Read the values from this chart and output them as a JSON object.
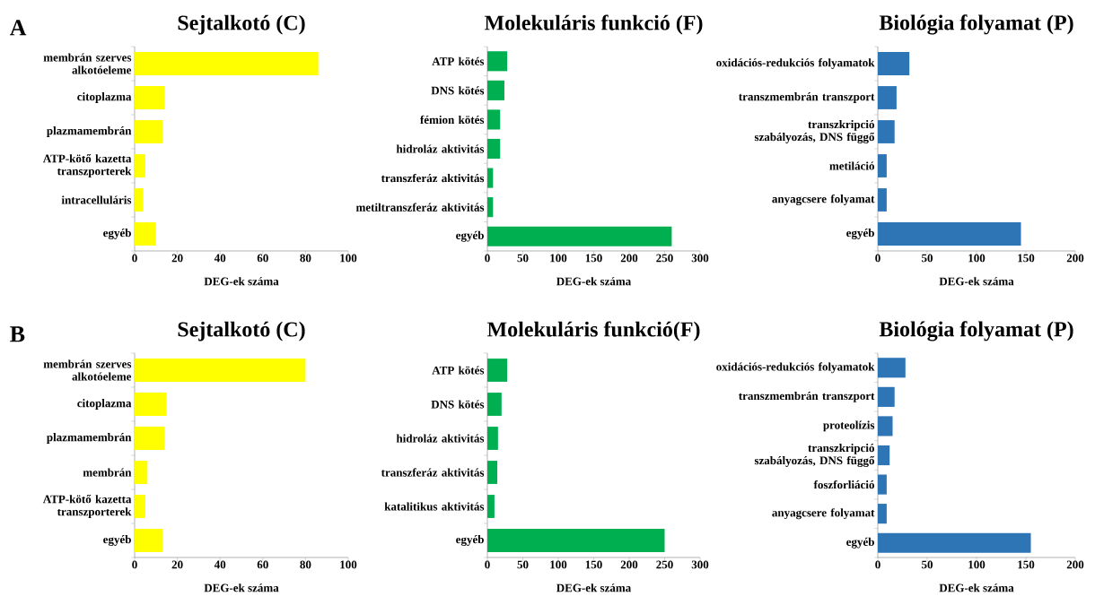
{
  "chart_data": [
    {
      "type": "bar",
      "orientation": "horizontal",
      "title": "Sejtalkotó (C)",
      "xlabel": "DEG-ek száma",
      "annotations": [
        "A"
      ],
      "categories": [
        "membrán szerves alkotóeleme",
        "citoplazma",
        "plazmamembrán",
        "ATP-kötő kazetta transzporterek",
        "intracelluláris",
        "egyéb"
      ],
      "values": [
        86,
        14,
        13,
        5,
        4,
        10
      ],
      "color": "#ffff00",
      "xlim": [
        0,
        100
      ],
      "xticks": [
        0,
        20,
        40,
        60,
        80,
        100
      ]
    },
    {
      "type": "bar",
      "orientation": "horizontal",
      "title": "Molekuláris funkció (F)",
      "xlabel": "DEG-ek száma",
      "categories": [
        "ATP kötés",
        "DNS kötés",
        "fémion kötés",
        "hidroláz aktivitás",
        "transzferáz aktivitás",
        "metiltranszferáz aktivitás",
        "egyéb"
      ],
      "values": [
        28,
        24,
        18,
        18,
        8,
        8,
        260
      ],
      "color": "#00b050",
      "xlim": [
        0,
        300
      ],
      "xticks": [
        0,
        50,
        100,
        150,
        200,
        250,
        300
      ]
    },
    {
      "type": "bar",
      "orientation": "horizontal",
      "title": "Biológia folyamat (P)",
      "xlabel": "DEG-ek száma",
      "categories": [
        "oxidációs-redukciós folyamatok",
        "transzmembrán transzport",
        "transzkripció szabályozás, DNS függő",
        "metiláció",
        "anyagcsere folyamat",
        "egyéb"
      ],
      "values": [
        32,
        19,
        17,
        9,
        9,
        145
      ],
      "color": "#2e75b6",
      "xlim": [
        0,
        200
      ],
      "xticks": [
        0,
        50,
        100,
        150,
        200
      ]
    },
    {
      "type": "bar",
      "orientation": "horizontal",
      "title": "Sejtalkotó (C)",
      "xlabel": "DEG-ek száma",
      "annotations": [
        "B"
      ],
      "categories": [
        "membrán szerves alkotóeleme",
        "citoplazma",
        "plazmamembrán",
        "membrán",
        "ATP-kötő kazetta transzporterek",
        "egyéb"
      ],
      "values": [
        80,
        15,
        14,
        6,
        5,
        13
      ],
      "color": "#ffff00",
      "xlim": [
        0,
        100
      ],
      "xticks": [
        0,
        20,
        40,
        60,
        80,
        100
      ]
    },
    {
      "type": "bar",
      "orientation": "horizontal",
      "title": "Molekuláris funkció(F)",
      "xlabel": "DEG-ek száma",
      "categories": [
        "ATP kötés",
        "DNS kötés",
        "hidroláz aktivitás",
        "transzferáz aktivitás",
        "katalitikus aktivitás",
        "egyéb"
      ],
      "values": [
        28,
        20,
        15,
        14,
        10,
        250
      ],
      "color": "#00b050",
      "xlim": [
        0,
        300
      ],
      "xticks": [
        0,
        50,
        100,
        150,
        200,
        250,
        300
      ]
    },
    {
      "type": "bar",
      "orientation": "horizontal",
      "title": "Biológia folyamat (P)",
      "xlabel": "DEG-ek száma",
      "categories": [
        "oxidációs-redukciós folyamatok",
        "transzmembrán transzport",
        "proteolízis",
        "transzkripció szabályozás, DNS függő",
        "foszforliáció",
        "anyagcsere folyamat",
        "egyéb"
      ],
      "values": [
        28,
        17,
        15,
        12,
        9,
        9,
        155
      ],
      "color": "#2e75b6",
      "xlim": [
        0,
        200
      ],
      "xticks": [
        0,
        50,
        100,
        150,
        200
      ]
    }
  ]
}
